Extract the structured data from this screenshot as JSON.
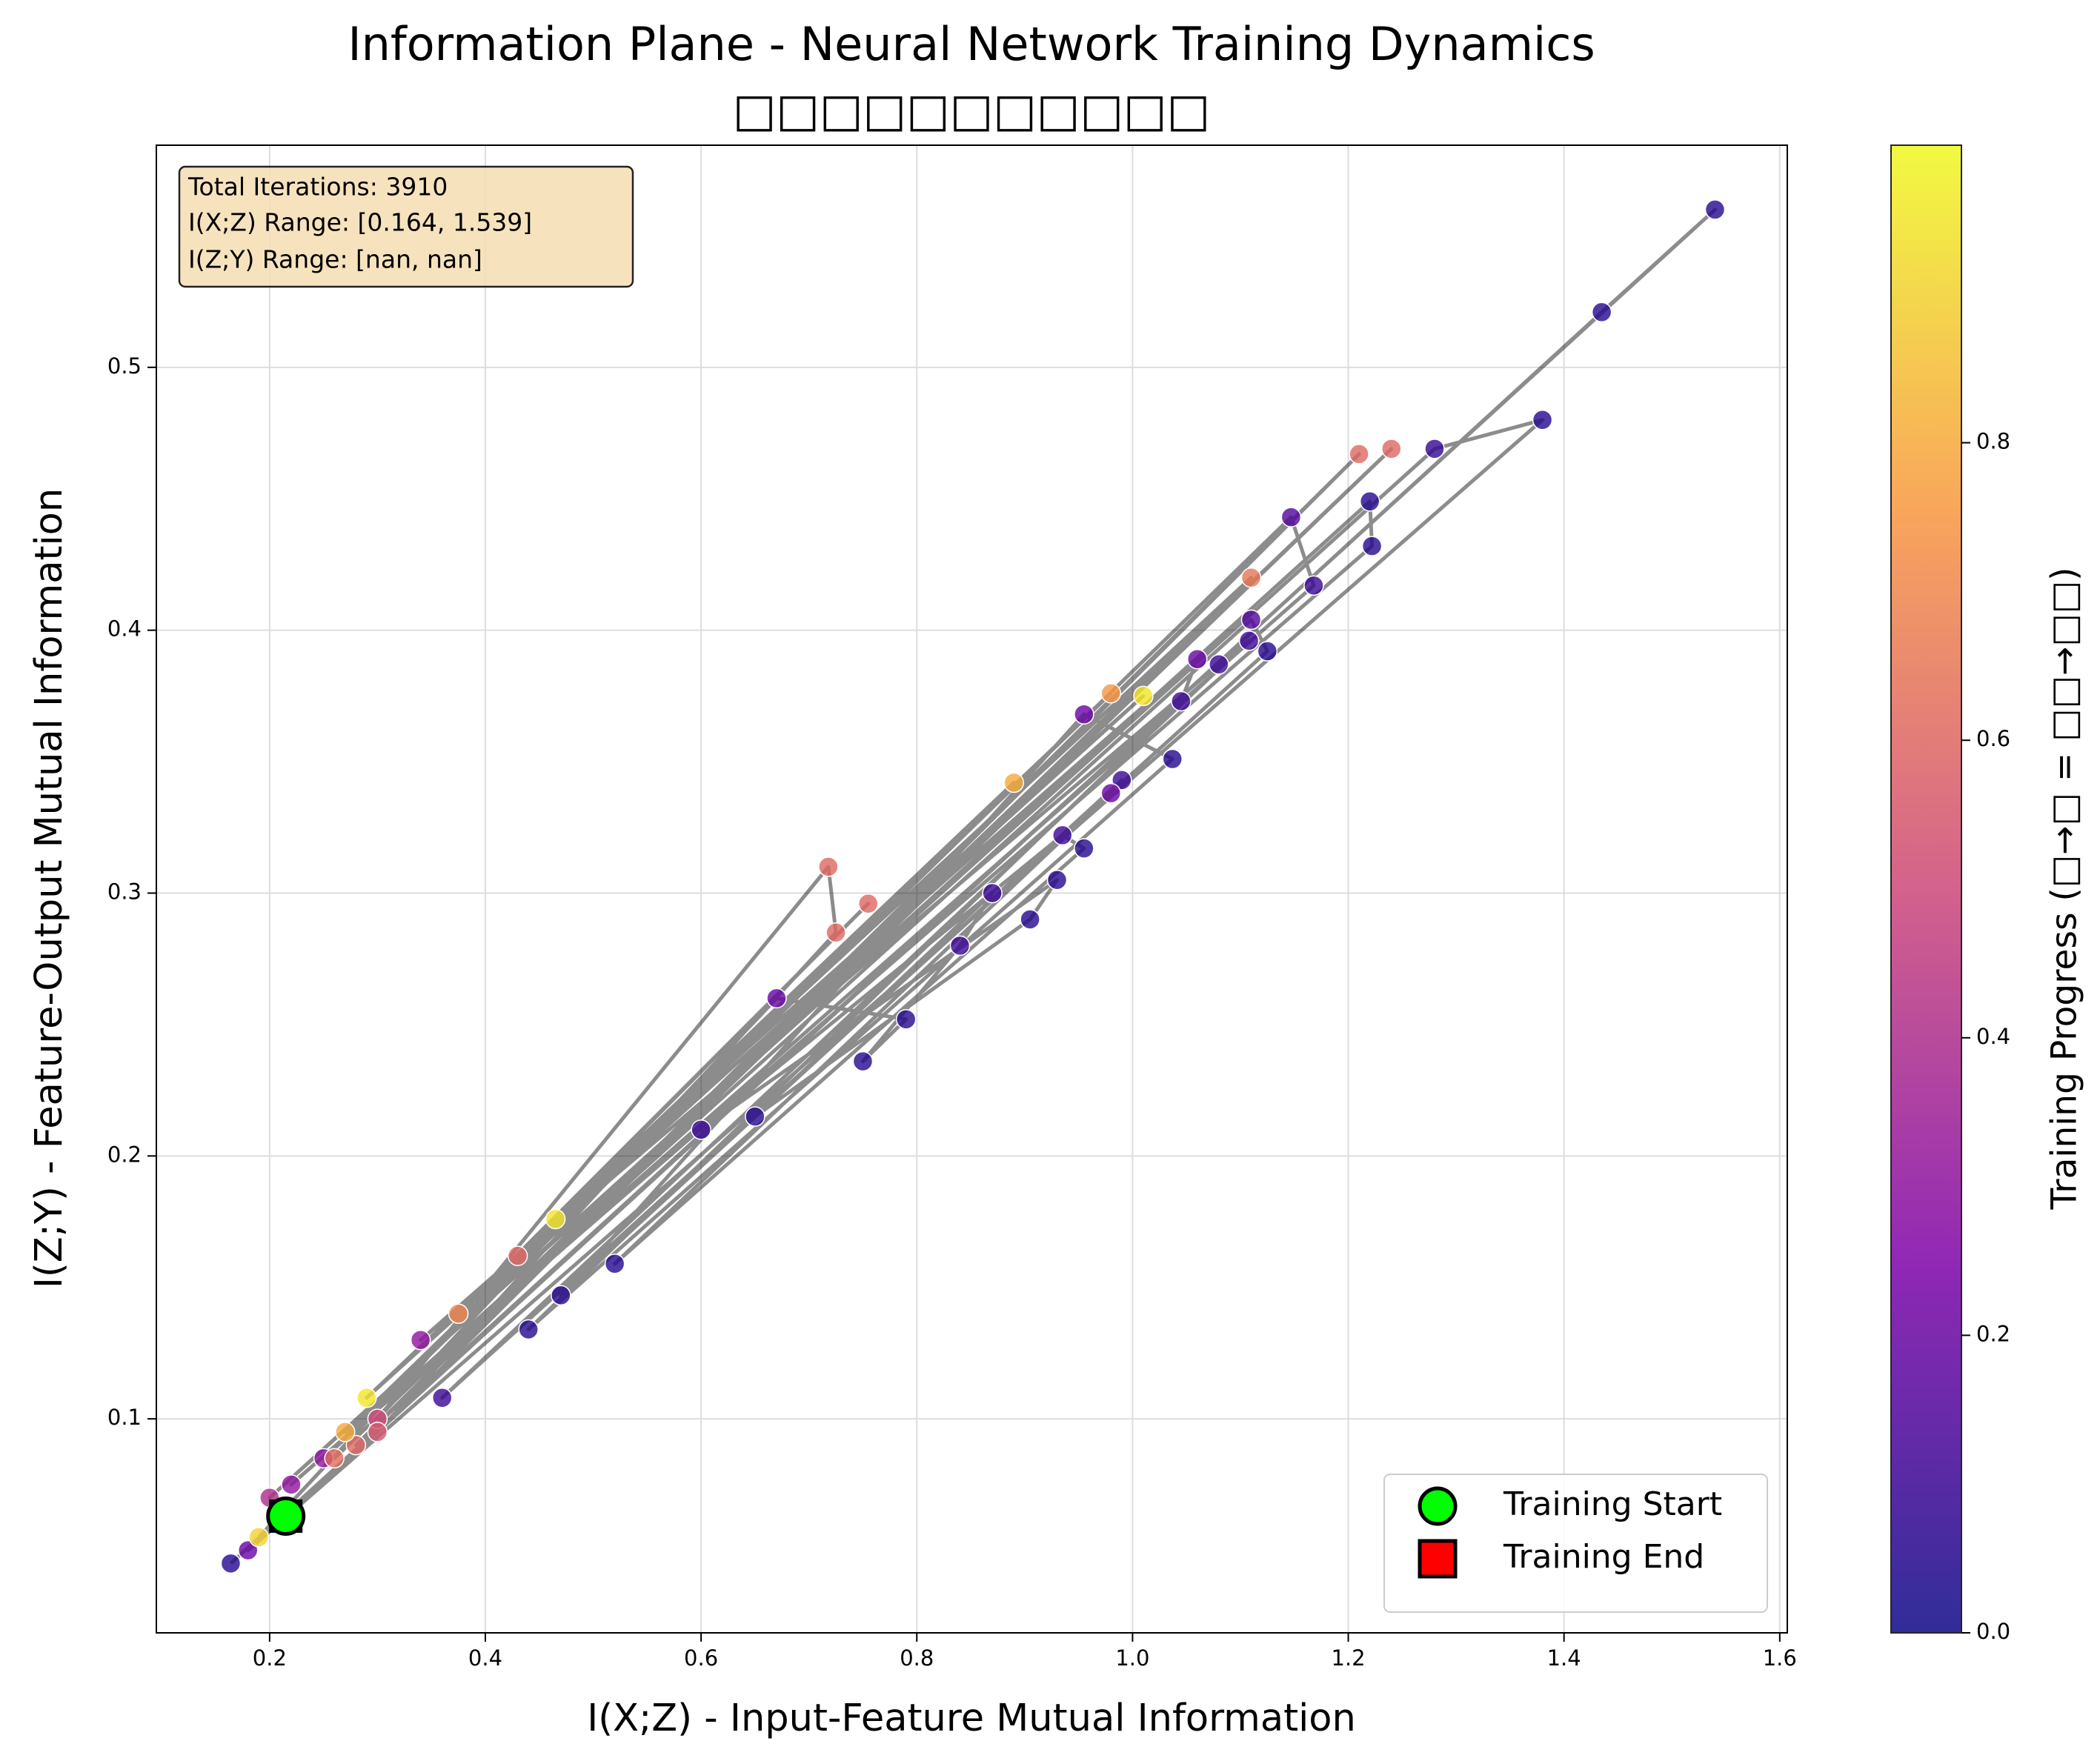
{
  "chart_data": {
    "type": "scatter",
    "title": "Information Plane - Neural Network Training Dynamics",
    "subtitle": "□□□□□□□□□□□",
    "x_label": "I(X;Z) - Input-Feature Mutual Information",
    "y_label": "I(Z;Y) - Feature-Output Mutual Information",
    "colorbar_label": "Training Progress (□→□ = □□→□□)",
    "colormap": "plasma",
    "clim": [
      0,
      1
    ],
    "cticks": [
      {
        "value": 0,
        "label": "0.0"
      },
      0.2,
      0.4,
      0.6,
      0.8
    ],
    "annotation": [
      "Total Iterations: 3910",
      "I(X;Z) Range: [0.164, 1.539]",
      "I(Z;Y) Range: [nan, nan]"
    ],
    "xlim": [
      0.095,
      1.607
    ],
    "ylim": [
      0.0186,
      0.5845
    ],
    "xticks": [
      0.2,
      0.4,
      0.6,
      0.8,
      {
        "value": 1,
        "label": "1.0"
      },
      1.2,
      1.4,
      1.6
    ],
    "yticks": [
      0.1,
      0.2,
      0.3,
      0.4,
      0.5
    ],
    "grid": true,
    "legend": "lower right",
    "x": [
      0.164,
      1.54,
      1.435,
      0.18,
      1.38,
      1.28,
      0.2,
      1.22,
      1.222,
      0.22,
      1.168,
      1.147,
      0.25,
      1.11,
      1.125,
      0.36,
      1.108,
      1.08,
      0.34,
      1.06,
      1.045,
      0.44,
      1.037,
      0.955,
      0.47,
      0.99,
      0.98,
      0.52,
      0.955,
      0.935,
      0.6,
      0.93,
      0.905,
      0.65,
      0.87,
      0.84,
      0.75,
      0.79,
      0.67,
      0.3,
      0.718,
      0.725,
      0.3,
      1.21,
      0.28,
      1.24,
      0.26,
      1.11,
      0.43,
      0.755,
      0.375,
      0.98,
      0.27,
      0.89,
      0.29,
      1.01,
      0.465,
      0.19
    ],
    "y": [
      0.045,
      0.56,
      0.521,
      0.05,
      0.48,
      0.469,
      0.07,
      0.449,
      0.432,
      0.075,
      0.417,
      0.443,
      0.085,
      0.404,
      0.392,
      0.108,
      0.396,
      0.387,
      0.13,
      0.389,
      0.373,
      0.134,
      0.351,
      0.368,
      0.147,
      0.343,
      0.338,
      0.159,
      0.317,
      0.322,
      0.21,
      0.305,
      0.29,
      0.215,
      0.3,
      0.28,
      0.236,
      0.252,
      0.26,
      0.1,
      0.31,
      0.285,
      0.095,
      0.467,
      0.09,
      0.469,
      0.085,
      0.42,
      0.162,
      0.296,
      0.14,
      0.376,
      0.095,
      0.342,
      0.108,
      0.375,
      0.176,
      0.055
    ],
    "progress": [
      0.05,
      0.05,
      0.05,
      0.2,
      0.05,
      0.08,
      0.4,
      0.05,
      0.05,
      0.3,
      0.1,
      0.15,
      0.3,
      0.15,
      0.05,
      0.1,
      0.1,
      0.1,
      0.3,
      0.2,
      0.1,
      0.05,
      0.05,
      0.2,
      0.05,
      0.1,
      0.2,
      0.05,
      0.05,
      0.1,
      0.1,
      0.05,
      0.05,
      0.05,
      0.1,
      0.1,
      0.05,
      0.05,
      0.2,
      0.5,
      0.6,
      0.6,
      0.55,
      0.6,
      0.6,
      0.6,
      0.62,
      0.65,
      0.6,
      0.6,
      0.7,
      0.75,
      0.8,
      0.8,
      0.95,
      0.95,
      0.95,
      0.9
    ],
    "markers": [
      {
        "name": "Training Start",
        "color": "#00ff00",
        "shape": "circle",
        "x": 0.215,
        "y": 0.063
      },
      {
        "name": "Training End",
        "color": "#ff0000",
        "shape": "square",
        "x": 0.215,
        "y": 0.063
      }
    ]
  }
}
